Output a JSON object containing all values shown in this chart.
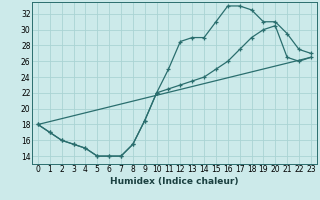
{
  "title": "",
  "xlabel": "Humidex (Indice chaleur)",
  "ylabel": "",
  "bg_color": "#cceaea",
  "grid_color": "#aad4d4",
  "line_color": "#2a6e6e",
  "xlim": [
    -0.5,
    23.5
  ],
  "ylim": [
    13.0,
    33.5
  ],
  "xticks": [
    0,
    1,
    2,
    3,
    4,
    5,
    6,
    7,
    8,
    9,
    10,
    11,
    12,
    13,
    14,
    15,
    16,
    17,
    18,
    19,
    20,
    21,
    22,
    23
  ],
  "yticks": [
    14,
    16,
    18,
    20,
    22,
    24,
    26,
    28,
    30,
    32
  ],
  "curve_upper": {
    "x": [
      0,
      1,
      2,
      3,
      4,
      5,
      6,
      7,
      8,
      9,
      10,
      11,
      12,
      13,
      14,
      15,
      16,
      17,
      18,
      19,
      20,
      21,
      22,
      23
    ],
    "y": [
      18,
      17,
      16,
      15.5,
      15,
      14,
      14,
      14,
      15.5,
      18.5,
      22,
      25,
      28.5,
      29,
      29,
      31,
      33,
      33,
      32.5,
      31,
      31,
      29.5,
      27.5,
      27
    ]
  },
  "curve_lower": {
    "x": [
      0,
      1,
      2,
      3,
      4,
      5,
      6,
      7,
      8,
      9,
      10,
      11,
      12,
      13,
      14,
      15,
      16,
      17,
      18,
      19,
      20,
      21,
      22,
      23
    ],
    "y": [
      18,
      17,
      16,
      15.5,
      15,
      14,
      14,
      14,
      15.5,
      18.5,
      22,
      22.5,
      23,
      23.5,
      24,
      25,
      26,
      27.5,
      29,
      30,
      30.5,
      26.5,
      26,
      26.5
    ]
  },
  "curve_diag": {
    "x": [
      0,
      23
    ],
    "y": [
      18,
      26.5
    ]
  },
  "figsize": [
    3.2,
    2.0
  ],
  "dpi": 100
}
